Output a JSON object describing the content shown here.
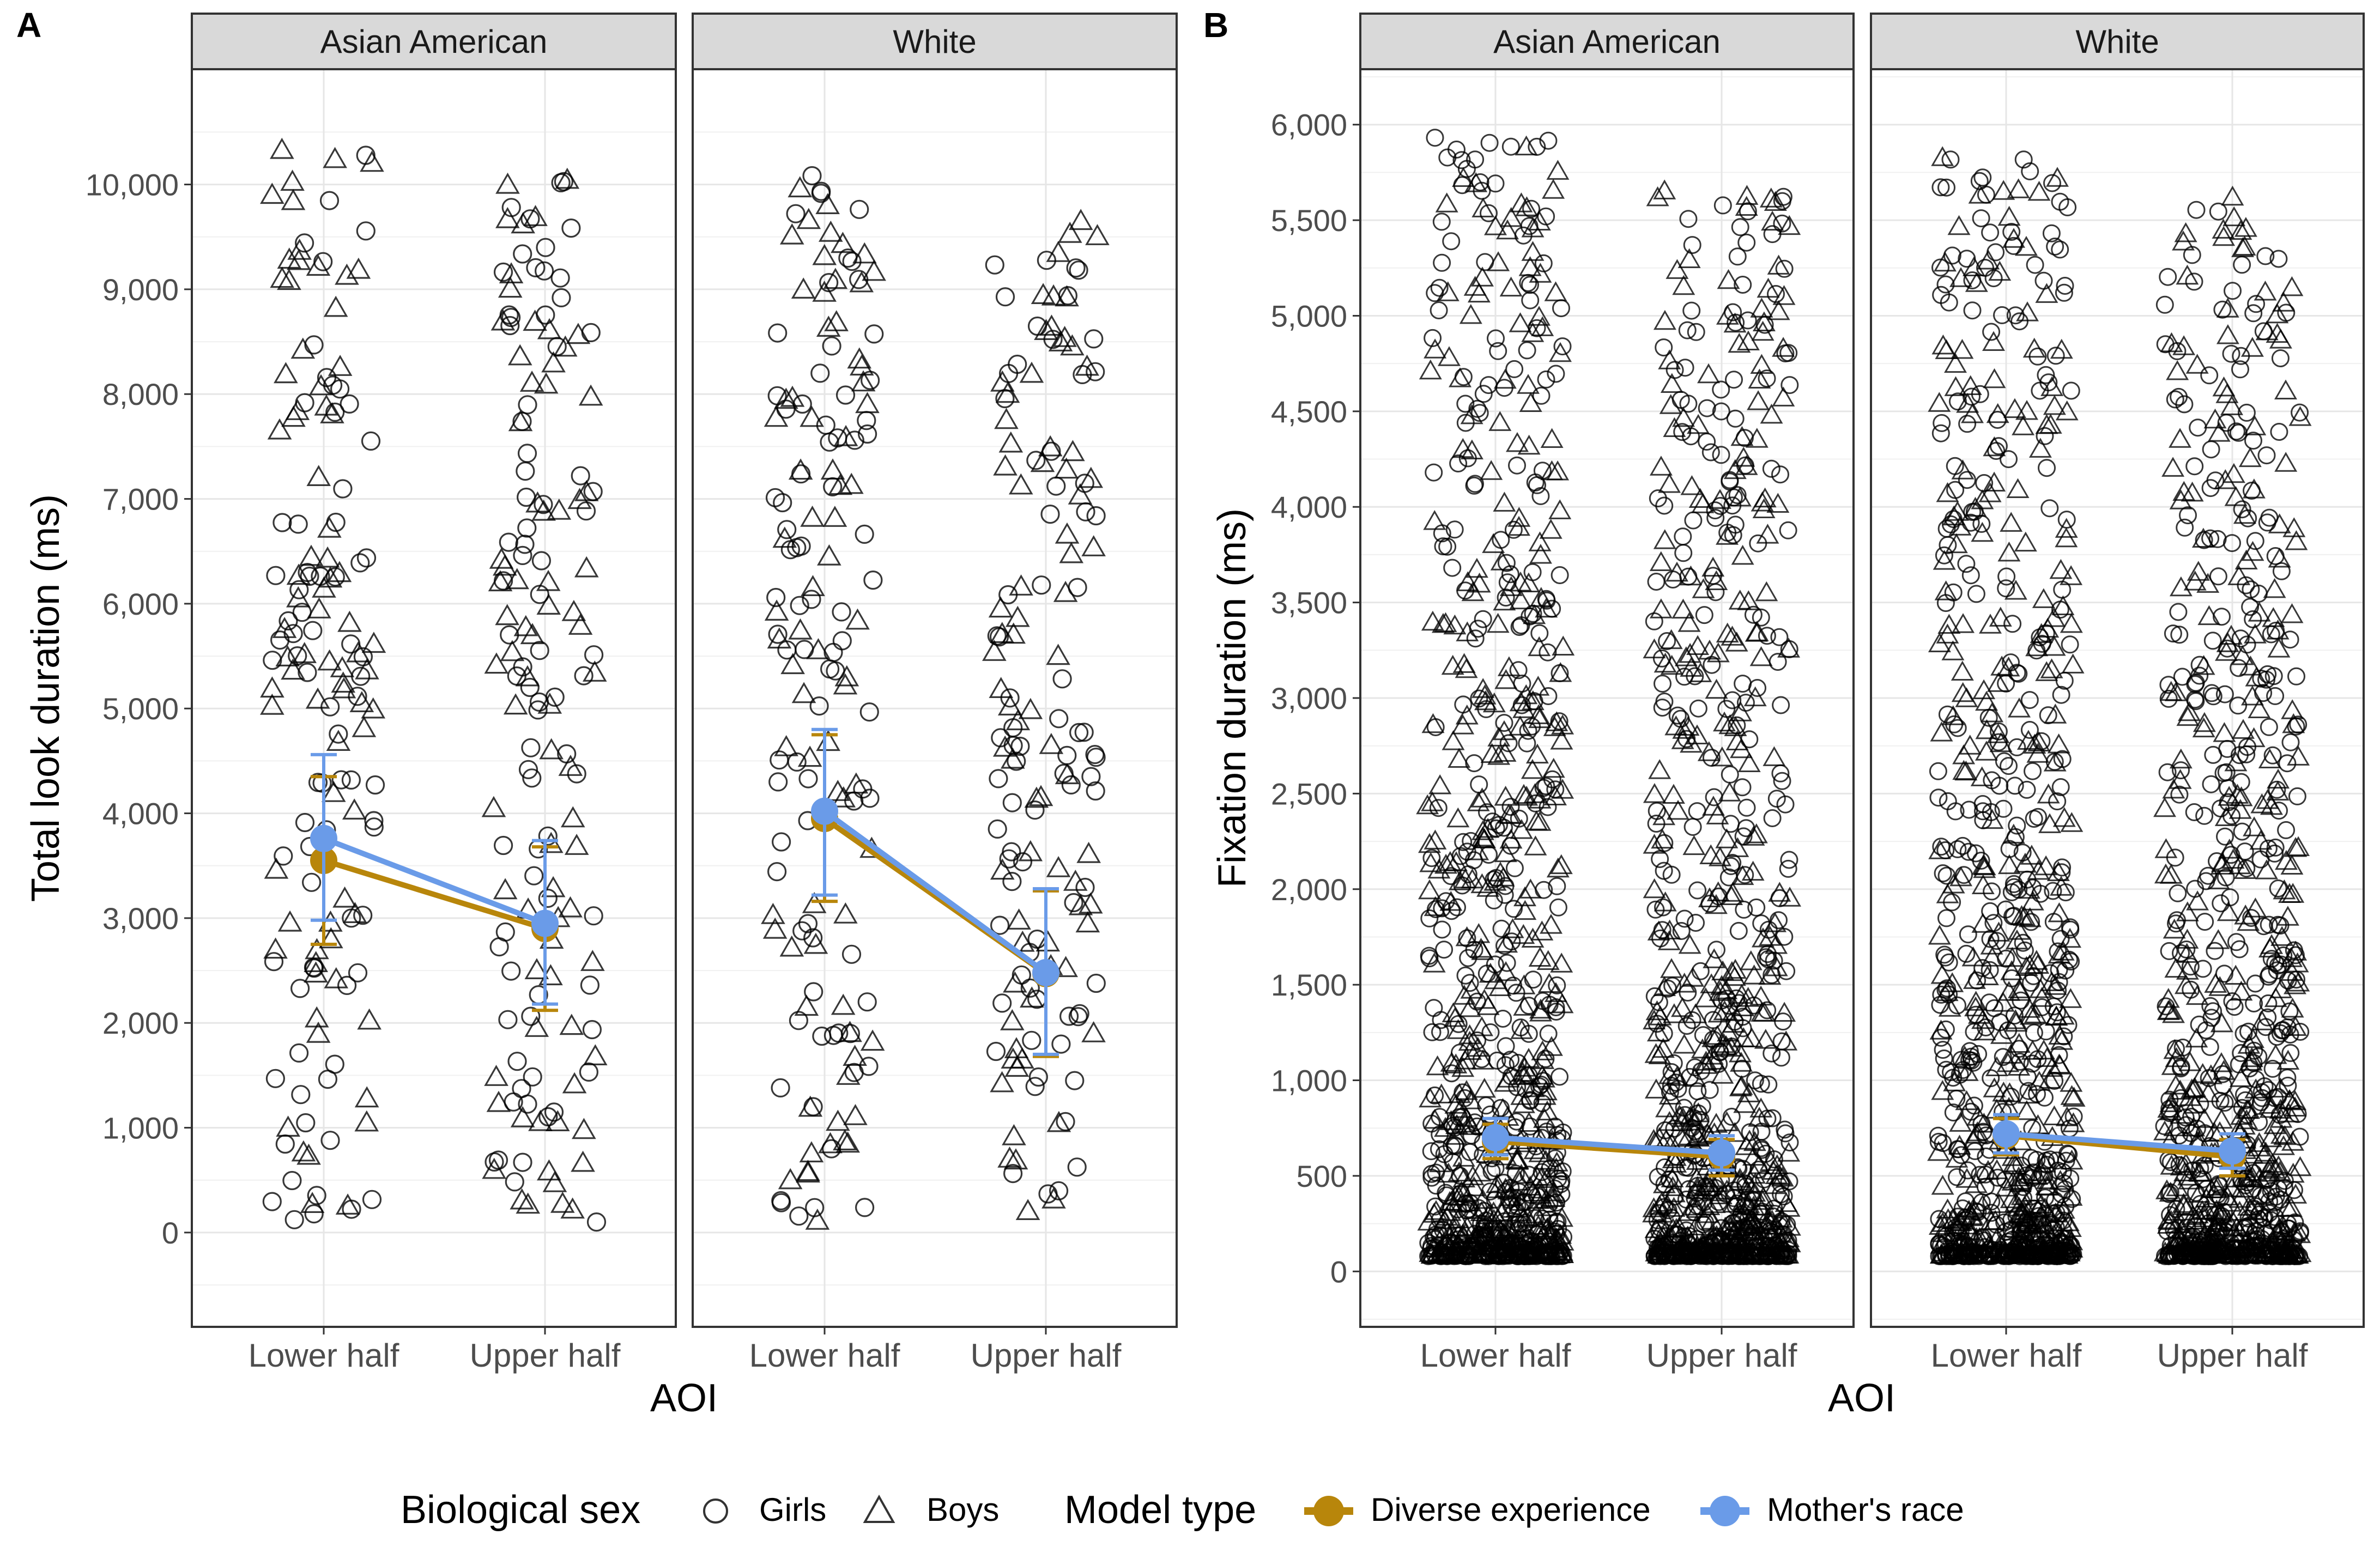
{
  "chart_data": [
    {
      "type": "scatter",
      "panel_label": "A",
      "ylabel": "Total look duration (ms)",
      "xlabel": "AOI",
      "categories": [
        "Lower half",
        "Upper half"
      ],
      "facets": [
        "Asian American",
        "White"
      ],
      "ylim": [
        -900,
        11100
      ],
      "yticks": [
        0,
        1000,
        2000,
        3000,
        4000,
        5000,
        6000,
        7000,
        8000,
        9000,
        10000
      ],
      "ytick_labels": [
        "0",
        "1,000",
        "2,000",
        "3,000",
        "4,000",
        "5,000",
        "6,000",
        "7,000",
        "8,000",
        "9,000",
        "10,000"
      ],
      "raw_points": {
        "n_per_group": 150,
        "min": 100,
        "max_by_facet": [
          10500,
          10100
        ],
        "distribution": "uniform"
      },
      "series": [
        {
          "name": "Diverse experience",
          "color": "#B8860B",
          "facets": [
            {
              "values": [
                3550,
                2900
              ],
              "ci_low": [
                2750,
                2120
              ],
              "ci_high": [
                4350,
                3680
              ]
            },
            {
              "values": [
                3950,
                2470
              ],
              "ci_low": [
                3160,
                1680
              ],
              "ci_high": [
                4750,
                3260
              ]
            }
          ]
        },
        {
          "name": "Mother's race",
          "color": "#6A9BE8",
          "facets": [
            {
              "values": [
                3760,
                2950
              ],
              "ci_low": [
                2980,
                2180
              ],
              "ci_high": [
                4560,
                3740
              ]
            },
            {
              "values": [
                4020,
                2480
              ],
              "ci_low": [
                3220,
                1700
              ],
              "ci_high": [
                4800,
                3280
              ]
            }
          ]
        }
      ]
    },
    {
      "type": "scatter",
      "panel_label": "B",
      "ylabel": "Fixation duration (ms)",
      "xlabel": "AOI",
      "categories": [
        "Lower half",
        "Upper half"
      ],
      "facets": [
        "Asian American",
        "White"
      ],
      "ylim": [
        -290,
        6290
      ],
      "yticks": [
        0,
        500,
        1000,
        1500,
        2000,
        2500,
        3000,
        3500,
        4000,
        4500,
        5000,
        5500,
        6000
      ],
      "ytick_labels": [
        "0",
        "500",
        "1,000",
        "1,500",
        "2,000",
        "2,500",
        "3,000",
        "3,500",
        "4,000",
        "4,500",
        "5,000",
        "5,500",
        "6,000"
      ],
      "raw_points": {
        "n_per_group": 900,
        "min": 80,
        "max_by_facet": [
          5950,
          5850
        ],
        "distribution": "right-skewed"
      },
      "series": [
        {
          "name": "Diverse experience",
          "color": "#B8860B",
          "facets": [
            {
              "values": [
                680,
                600
              ],
              "ci_low": [
                590,
                500
              ],
              "ci_high": [
                770,
                690
              ]
            },
            {
              "values": [
                710,
                600
              ],
              "ci_low": [
                610,
                500
              ],
              "ci_high": [
                800,
                690
              ]
            }
          ]
        },
        {
          "name": "Mother's race",
          "color": "#6A9BE8",
          "facets": [
            {
              "values": [
                700,
                620
              ],
              "ci_low": [
                610,
                530
              ],
              "ci_high": [
                800,
                710
              ]
            },
            {
              "values": [
                720,
                630
              ],
              "ci_low": [
                620,
                540
              ],
              "ci_high": [
                820,
                720
              ]
            }
          ]
        }
      ]
    }
  ],
  "legend": {
    "sex_title": "Biological sex",
    "sex_items": [
      "Girls",
      "Boys"
    ],
    "model_title": "Model type",
    "model_items": [
      "Diverse experience",
      "Mother's race"
    ],
    "model_colors": [
      "#B8860B",
      "#6A9BE8"
    ]
  }
}
